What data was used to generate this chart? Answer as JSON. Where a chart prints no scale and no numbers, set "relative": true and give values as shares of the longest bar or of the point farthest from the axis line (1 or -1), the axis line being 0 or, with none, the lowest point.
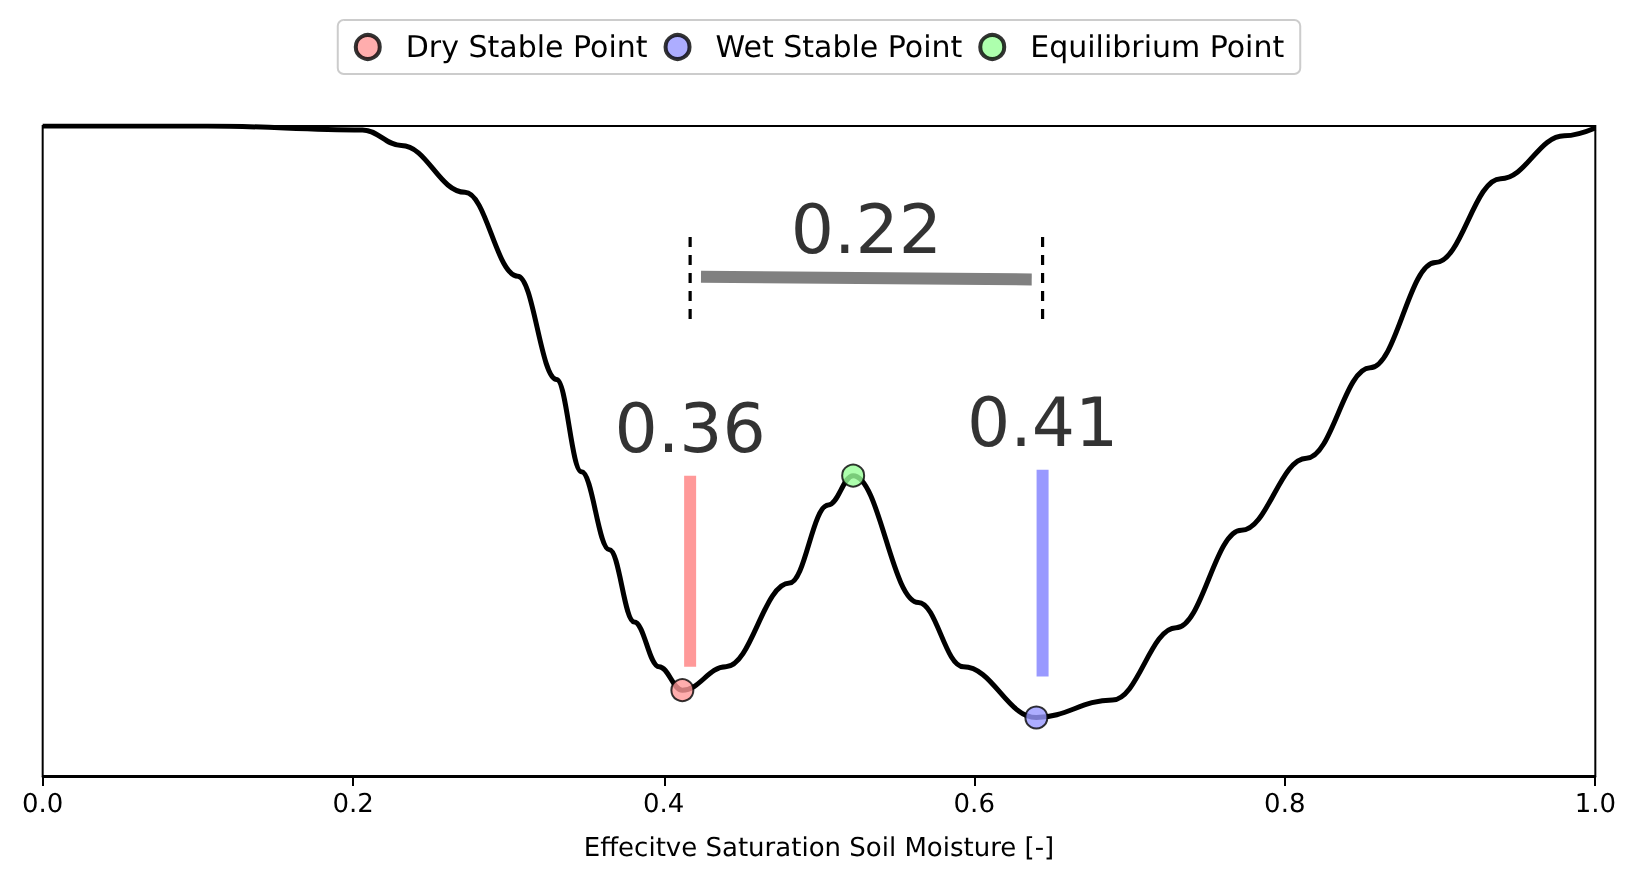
{
  "chart_data": {
    "type": "line",
    "relative": true,
    "xlabel": "Effecitve Saturation Soil Moisture [-]",
    "xlim": [
      0,
      1
    ],
    "xticks": [
      {
        "value": 0,
        "label": "0.0"
      },
      {
        "value": 0.2,
        "label": "0.2"
      },
      {
        "value": 0.4,
        "label": "0.4"
      },
      {
        "value": 0.6,
        "label": "0.6"
      },
      {
        "value": 0.8,
        "label": "0.8"
      },
      {
        "value": 1,
        "label": "1.0"
      }
    ],
    "tick_labels": "x",
    "grid": false,
    "legend": "top",
    "series": [
      {
        "color": "#000000",
        "marker": "none",
        "line_style": "solid",
        "x": [
          0,
          0.106,
          0.206,
          0.231,
          0.272,
          0.306,
          0.331,
          0.347,
          0.365,
          0.381,
          0.397,
          0.412,
          0.44,
          0.481,
          0.506,
          0.522,
          0.564,
          0.593,
          0.64,
          0.689,
          0.73,
          0.772,
          0.814,
          0.855,
          0.897,
          0.939,
          0.98,
          1
        ],
        "values": [
          1,
          1,
          0.994,
          0.97,
          0.898,
          0.769,
          0.61,
          0.468,
          0.348,
          0.237,
          0.168,
          0.132,
          0.168,
          0.297,
          0.417,
          0.462,
          0.267,
          0.168,
          0.09,
          0.117,
          0.228,
          0.378,
          0.489,
          0.628,
          0.79,
          0.919,
          0.985,
          0.997
        ]
      },
      {
        "color": "#ff9999",
        "marker": "none",
        "line_style": "solid",
        "x": [
          0.417,
          0.417
        ],
        "values": [
          0.168,
          0.462
        ]
      },
      {
        "color": "#9999ff",
        "marker": "none",
        "line_style": "solid",
        "x": [
          0.644,
          0.644
        ],
        "values": [
          0.153,
          0.471
        ]
      },
      {
        "color": "#808080",
        "marker": "none",
        "line_style": "solid",
        "x": [
          0.424,
          0.637
        ],
        "values": [
          0.768,
          0.764
        ]
      },
      {
        "color": "#000000",
        "marker": "none",
        "line_style": "dashed",
        "x": [
          0.417,
          0.417
        ],
        "values": [
          0.703,
          0.835
        ]
      },
      {
        "color": "#000000",
        "marker": "none",
        "line_style": "dashed",
        "x": [
          0.644,
          0.644
        ],
        "values": [
          0.703,
          0.835
        ]
      },
      {
        "type": "scatter",
        "name": "Dry Stable Point",
        "color": "#ff9999",
        "marker": "circle",
        "x": [
          0.412
        ],
        "values": [
          0.132
        ]
      },
      {
        "type": "scatter",
        "name": "Wet Stable Point",
        "color": "#9999ff",
        "marker": "circle",
        "x": [
          0.64
        ],
        "values": [
          0.09
        ]
      },
      {
        "type": "scatter",
        "name": "Equilibrium Point",
        "color": "#99ff99",
        "marker": "circle",
        "x": [
          0.522
        ],
        "values": [
          0.462
        ]
      }
    ],
    "annotations": [
      "0.36",
      "0.41",
      "0.22"
    ]
  }
}
